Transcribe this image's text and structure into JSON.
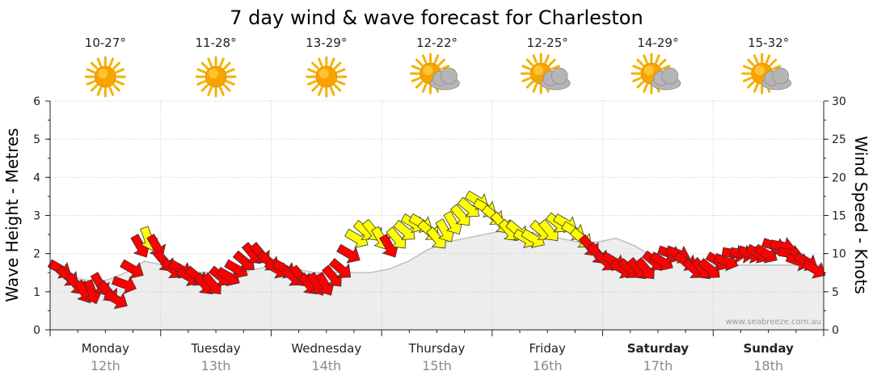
{
  "chart_data": {
    "type": "line",
    "title": "7 day wind & wave forecast for Charleston",
    "ylabel_left": "Wave Height - Metres",
    "ylabel_right": "Wind Speed - Knots",
    "ylim_left": [
      0,
      6
    ],
    "ylim_right": [
      0,
      30
    ],
    "yticks_left": [
      "0",
      "1",
      "2",
      "3",
      "4",
      "5",
      "6"
    ],
    "yticks_right": [
      "0",
      "5",
      "10",
      "15",
      "20",
      "25",
      "30"
    ],
    "days": [
      {
        "name": "Monday",
        "date": "12th",
        "temp": "10-27°",
        "weather": "sunny",
        "bold": false
      },
      {
        "name": "Tuesday",
        "date": "13th",
        "temp": "11-28°",
        "weather": "sunny",
        "bold": false
      },
      {
        "name": "Wednesday",
        "date": "14th",
        "temp": "13-29°",
        "weather": "sunny",
        "bold": false
      },
      {
        "name": "Thursday",
        "date": "15th",
        "temp": "12-22°",
        "weather": "partly-cloudy",
        "bold": false
      },
      {
        "name": "Friday",
        "date": "16th",
        "temp": "12-25°",
        "weather": "partly-cloudy",
        "bold": false
      },
      {
        "name": "Saturday",
        "date": "17th",
        "temp": "14-29°",
        "weather": "partly-cloudy",
        "bold": true
      },
      {
        "name": "Sunday",
        "date": "18th",
        "temp": "15-32°",
        "weather": "partly-cloudy",
        "bold": true
      }
    ],
    "wave_height_series": {
      "name": "Wave Height (m)",
      "color": "#cccccc",
      "values": [
        1.6,
        1.4,
        1.3,
        1.3,
        1.5,
        1.8,
        1.7,
        1.6,
        1.5,
        1.5,
        1.5,
        1.6,
        1.7,
        1.6,
        1.5,
        1.5,
        1.5,
        1.5,
        1.6,
        1.8,
        2.1,
        2.3,
        2.4,
        2.5,
        2.6,
        2.6,
        2.5,
        2.4,
        2.3,
        2.3,
        2.4,
        2.2,
        1.9,
        1.8,
        1.7,
        1.7,
        1.7,
        1.7,
        1.7,
        1.7,
        1.7,
        1.7
      ]
    },
    "wind_series": {
      "name": "Wind Speed (knots)",
      "x_step_hours": 3,
      "speed_knots": [
        8,
        7,
        6,
        5,
        5,
        6,
        5,
        4,
        6,
        8,
        11,
        12,
        11,
        9,
        8,
        8,
        7,
        7,
        6,
        6,
        7,
        7,
        8,
        9,
        10,
        10,
        9,
        8,
        8,
        7,
        7,
        6,
        6,
        6,
        7,
        8,
        10,
        12,
        13,
        13,
        12,
        11,
        12,
        13,
        14,
        14,
        13,
        12,
        13,
        14,
        15,
        16,
        17,
        16,
        15,
        14,
        13,
        13,
        12,
        12,
        13,
        13,
        14,
        14,
        13,
        12,
        11,
        10,
        9,
        9,
        8,
        8,
        8,
        8,
        9,
        9,
        10,
        10,
        9,
        8,
        8,
        8,
        9,
        9,
        10,
        10,
        10,
        10,
        10,
        11,
        11,
        10,
        9,
        9,
        8
      ],
      "direction_deg": [
        300,
        310,
        320,
        330,
        340,
        330,
        320,
        300,
        290,
        300,
        330,
        340,
        330,
        320,
        310,
        300,
        300,
        310,
        320,
        320,
        310,
        300,
        300,
        310,
        320,
        320,
        310,
        300,
        300,
        310,
        320,
        320,
        330,
        330,
        320,
        310,
        300,
        300,
        310,
        320,
        330,
        330,
        320,
        310,
        300,
        300,
        310,
        320,
        330,
        330,
        320,
        310,
        300,
        300,
        310,
        320,
        320,
        310,
        300,
        300,
        310,
        320,
        310,
        300,
        300,
        310,
        320,
        320,
        310,
        300,
        300,
        310,
        320,
        320,
        310,
        300,
        290,
        290,
        300,
        310,
        320,
        310,
        300,
        290,
        280,
        280,
        290,
        300,
        300,
        290,
        280,
        280,
        290,
        300,
        300
      ],
      "colors": {
        "light": "#ff0000",
        "moderate": "#ffff00",
        "strong_threshold_knots": 12
      }
    },
    "wave_height_color": "#cccccc",
    "grid": true
  },
  "credit": "www.seabreeze.com.au"
}
